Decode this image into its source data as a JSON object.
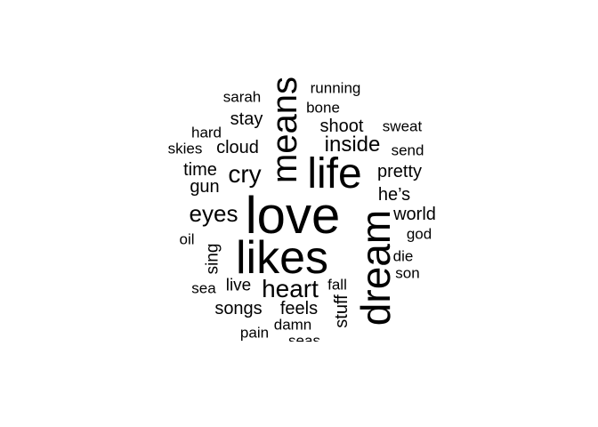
{
  "words": [
    {
      "text": "love"
    },
    {
      "text": "likes"
    },
    {
      "text": "dream"
    },
    {
      "text": "life"
    },
    {
      "text": "means"
    },
    {
      "text": "heart"
    },
    {
      "text": "eyes"
    },
    {
      "text": "cry"
    },
    {
      "text": "inside"
    },
    {
      "text": "shoot"
    },
    {
      "text": "stay"
    },
    {
      "text": "cloud"
    },
    {
      "text": "time"
    },
    {
      "text": "gun"
    },
    {
      "text": "pretty"
    },
    {
      "text": "he’s"
    },
    {
      "text": "world"
    },
    {
      "text": "songs"
    },
    {
      "text": "feels"
    },
    {
      "text": "stuff"
    },
    {
      "text": "sing"
    },
    {
      "text": "live"
    },
    {
      "text": "sarah"
    },
    {
      "text": "running"
    },
    {
      "text": "bone"
    },
    {
      "text": "hard"
    },
    {
      "text": "skies"
    },
    {
      "text": "sweat"
    },
    {
      "text": "send"
    },
    {
      "text": "god"
    },
    {
      "text": "oil"
    },
    {
      "text": "die"
    },
    {
      "text": "son"
    },
    {
      "text": "sea"
    },
    {
      "text": "fall"
    },
    {
      "text": "pain"
    },
    {
      "text": "damn"
    },
    {
      "text": "seas"
    }
  ]
}
